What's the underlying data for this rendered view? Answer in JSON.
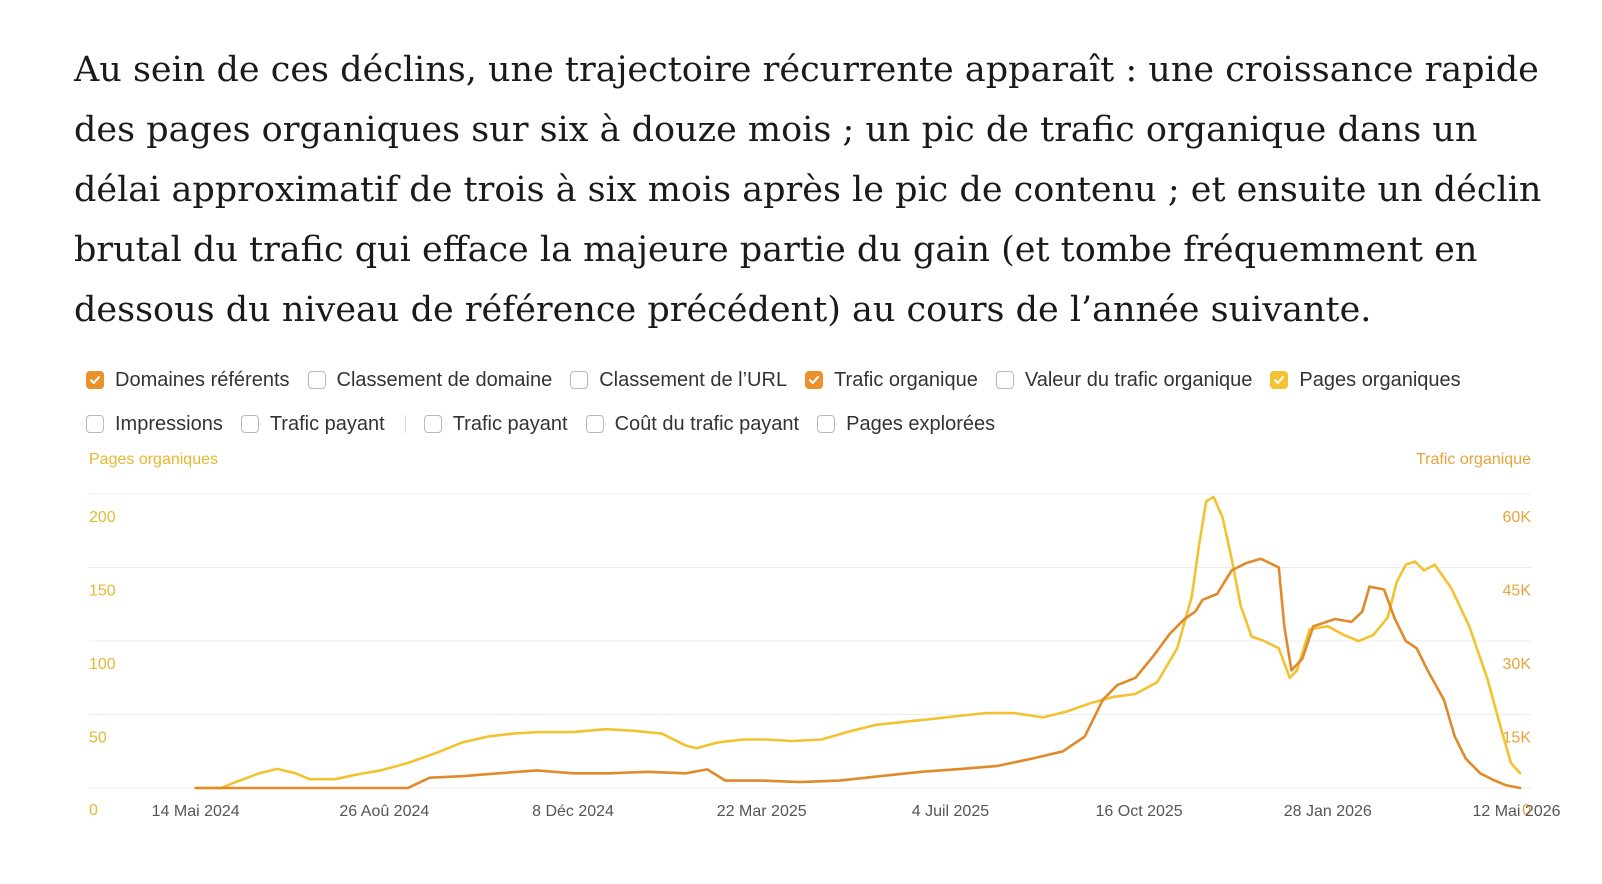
{
  "article": {
    "paragraph": "Au sein de ces déclins, une trajectoire récurrente apparaît : une croissance rapide des pages organiques sur six à douze mois ; un pic de trafic organique dans un délai approximatif de trois à six mois après le pic de contenu ; et ensuite un déclin brutal du trafic qui efface la majeure partie du gain (et tombe fréquemment en dessous du niveau de référence précédent) au cours de l’année suivante."
  },
  "legend": {
    "row1": [
      {
        "label": "Domaines référents",
        "checked": true,
        "color": "#e8912d"
      },
      {
        "label": "Classement de domaine",
        "checked": false
      },
      {
        "label": "Classement de l’URL",
        "checked": false
      },
      {
        "label": "Trafic organique",
        "checked": true,
        "color": "#e8912d"
      },
      {
        "label": "Valeur du trafic organique",
        "checked": false
      },
      {
        "label": "Pages organiques",
        "checked": true,
        "color": "#f2c230"
      }
    ],
    "row2": [
      {
        "label": "Impressions",
        "checked": false
      },
      {
        "label": "Trafic payant",
        "checked": false
      },
      {
        "label": "Trafic payant",
        "checked": false
      },
      {
        "label": "Coût du trafic payant",
        "checked": false
      },
      {
        "label": "Pages explorées",
        "checked": false
      }
    ]
  },
  "colors": {
    "pages": "#f2c230",
    "traffic": "#e08a2a",
    "axis_left_text": "#e6b830",
    "axis_right_text": "#e8a43a",
    "grid": "#ececec"
  },
  "chart_data": {
    "type": "line",
    "y_left_label": "Pages organiques",
    "y_right_label": "Trafic organique",
    "y_left_ticks": [
      "0",
      "50",
      "100",
      "150",
      "200"
    ],
    "y_right_ticks": [
      "0",
      "15K",
      "30K",
      "45K",
      "60K"
    ],
    "ylim_left": [
      0,
      200
    ],
    "ylim_right": [
      0,
      60000
    ],
    "x_range": [
      "2024-04-26",
      "2026-05-20"
    ],
    "x_ticks": [
      {
        "date": "2024-05-14",
        "label": "14 Mai 2024"
      },
      {
        "date": "2024-08-26",
        "label": "26 Aoû 2024"
      },
      {
        "date": "2024-12-08",
        "label": "8 Déc 2024"
      },
      {
        "date": "2025-03-22",
        "label": "22 Mar 2025"
      },
      {
        "date": "2025-07-04",
        "label": "4 Juil 2025"
      },
      {
        "date": "2025-10-16",
        "label": "16 Oct 2025"
      },
      {
        "date": "2026-01-28",
        "label": "28 Jan 2026"
      },
      {
        "date": "2026-05-12",
        "label": "12 Mai 2026"
      }
    ],
    "series": [
      {
        "name": "Pages organiques",
        "axis": "left",
        "color": "#f2c230",
        "points": [
          [
            "2024-05-14",
            0
          ],
          [
            "2024-05-28",
            0
          ],
          [
            "2024-06-05",
            4
          ],
          [
            "2024-06-18",
            10
          ],
          [
            "2024-06-28",
            13
          ],
          [
            "2024-07-08",
            10
          ],
          [
            "2024-07-16",
            6
          ],
          [
            "2024-07-30",
            6
          ],
          [
            "2024-08-10",
            9
          ],
          [
            "2024-08-24",
            12
          ],
          [
            "2024-09-08",
            17
          ],
          [
            "2024-09-24",
            24
          ],
          [
            "2024-10-08",
            31
          ],
          [
            "2024-10-22",
            35
          ],
          [
            "2024-11-05",
            37
          ],
          [
            "2024-11-19",
            38
          ],
          [
            "2024-12-08",
            38
          ],
          [
            "2024-12-26",
            40
          ],
          [
            "2025-01-10",
            39
          ],
          [
            "2025-01-26",
            37
          ],
          [
            "2025-02-08",
            29
          ],
          [
            "2025-02-14",
            27
          ],
          [
            "2025-02-26",
            31
          ],
          [
            "2025-03-12",
            33
          ],
          [
            "2025-03-24",
            33
          ],
          [
            "2025-04-08",
            32
          ],
          [
            "2025-04-24",
            33
          ],
          [
            "2025-05-08",
            38
          ],
          [
            "2025-05-24",
            43
          ],
          [
            "2025-06-08",
            45
          ],
          [
            "2025-06-24",
            47
          ],
          [
            "2025-07-08",
            49
          ],
          [
            "2025-07-24",
            51
          ],
          [
            "2025-08-08",
            51
          ],
          [
            "2025-08-24",
            48
          ],
          [
            "2025-09-06",
            52
          ],
          [
            "2025-09-20",
            58
          ],
          [
            "2025-10-02",
            62
          ],
          [
            "2025-10-14",
            64
          ],
          [
            "2025-10-26",
            72
          ],
          [
            "2025-11-06",
            95
          ],
          [
            "2025-11-14",
            130
          ],
          [
            "2025-11-18",
            165
          ],
          [
            "2025-11-22",
            195
          ],
          [
            "2025-11-26",
            198
          ],
          [
            "2025-12-01",
            184
          ],
          [
            "2025-12-06",
            156
          ],
          [
            "2025-12-11",
            124
          ],
          [
            "2025-12-17",
            103
          ],
          [
            "2025-12-24",
            100
          ],
          [
            "2026-01-01",
            95
          ],
          [
            "2026-01-07",
            75
          ],
          [
            "2026-01-11",
            80
          ],
          [
            "2026-01-18",
            108
          ],
          [
            "2026-01-28",
            110
          ],
          [
            "2026-02-06",
            104
          ],
          [
            "2026-02-14",
            100
          ],
          [
            "2026-02-22",
            104
          ],
          [
            "2026-03-02",
            116
          ],
          [
            "2026-03-07",
            140
          ],
          [
            "2026-03-12",
            152
          ],
          [
            "2026-03-17",
            154
          ],
          [
            "2026-03-22",
            148
          ],
          [
            "2026-03-28",
            152
          ],
          [
            "2026-04-06",
            136
          ],
          [
            "2026-04-16",
            110
          ],
          [
            "2026-04-26",
            74
          ],
          [
            "2026-05-04",
            38
          ],
          [
            "2026-05-09",
            17
          ],
          [
            "2026-05-14",
            10
          ]
        ]
      },
      {
        "name": "Trafic organique",
        "axis": "right",
        "color": "#e08a2a",
        "points": [
          [
            "2024-05-14",
            0
          ],
          [
            "2024-06-30",
            0
          ],
          [
            "2024-08-15",
            0
          ],
          [
            "2024-09-08",
            0
          ],
          [
            "2024-09-20",
            2100
          ],
          [
            "2024-10-08",
            2400
          ],
          [
            "2024-10-28",
            3000
          ],
          [
            "2024-11-18",
            3600
          ],
          [
            "2024-12-08",
            3000
          ],
          [
            "2024-12-28",
            3000
          ],
          [
            "2025-01-18",
            3300
          ],
          [
            "2025-02-08",
            3000
          ],
          [
            "2025-02-20",
            3800
          ],
          [
            "2025-03-02",
            1500
          ],
          [
            "2025-03-22",
            1500
          ],
          [
            "2025-04-12",
            1200
          ],
          [
            "2025-05-04",
            1500
          ],
          [
            "2025-05-26",
            2400
          ],
          [
            "2025-06-18",
            3300
          ],
          [
            "2025-07-10",
            3900
          ],
          [
            "2025-07-30",
            4500
          ],
          [
            "2025-08-18",
            6000
          ],
          [
            "2025-09-04",
            7500
          ],
          [
            "2025-09-16",
            10500
          ],
          [
            "2025-09-22",
            15000
          ],
          [
            "2025-09-26",
            18000
          ],
          [
            "2025-10-04",
            21000
          ],
          [
            "2025-10-14",
            22500
          ],
          [
            "2025-10-24",
            27000
          ],
          [
            "2025-11-02",
            31500
          ],
          [
            "2025-11-10",
            34500
          ],
          [
            "2025-11-16",
            36000
          ],
          [
            "2025-11-20",
            38400
          ],
          [
            "2025-11-28",
            39600
          ],
          [
            "2025-12-06",
            44400
          ],
          [
            "2025-12-14",
            45900
          ],
          [
            "2025-12-22",
            46800
          ],
          [
            "2026-01-01",
            45000
          ],
          [
            "2026-01-04",
            33000
          ],
          [
            "2026-01-08",
            24000
          ],
          [
            "2026-01-14",
            26400
          ],
          [
            "2026-01-20",
            33000
          ],
          [
            "2026-02-01",
            34500
          ],
          [
            "2026-02-10",
            33900
          ],
          [
            "2026-02-16",
            36000
          ],
          [
            "2026-02-20",
            41100
          ],
          [
            "2026-02-28",
            40500
          ],
          [
            "2026-03-06",
            34500
          ],
          [
            "2026-03-12",
            30000
          ],
          [
            "2026-03-18",
            28500
          ],
          [
            "2026-03-24",
            24000
          ],
          [
            "2026-04-02",
            18000
          ],
          [
            "2026-04-08",
            10500
          ],
          [
            "2026-04-14",
            6000
          ],
          [
            "2026-04-22",
            3000
          ],
          [
            "2026-04-30",
            1500
          ],
          [
            "2026-05-06",
            600
          ],
          [
            "2026-05-14",
            0
          ]
        ]
      }
    ]
  }
}
